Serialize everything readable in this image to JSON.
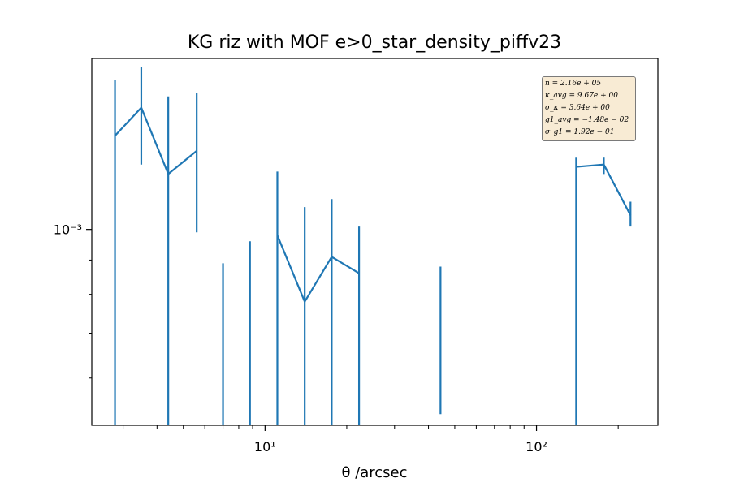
{
  "chart_data": {
    "type": "line",
    "title": "KG riz with MOF e>0_star_density_piffv23",
    "xlabel": "θ /arcsec",
    "ylabel": "",
    "xscale": "log",
    "yscale": "log",
    "xlim": [
      2.3,
      280
    ],
    "ylim": [
      0.00051,
      0.0018
    ],
    "x_tick_labels": [
      "10¹",
      "10²"
    ],
    "x_tick_values": [
      10,
      100
    ],
    "y_tick_labels": [
      "10⁻³"
    ],
    "y_tick_values": [
      0.001
    ],
    "grid": false,
    "line_color": "#1f77b4",
    "series": [
      {
        "x": [
          2.8,
          3.5,
          4.4,
          5.6,
          7.0,
          8.8,
          11.1,
          14.0,
          17.6,
          22.2,
          44.3,
          140,
          177,
          222
        ],
        "y": [
          0.00138,
          0.00152,
          0.00121,
          0.00131,
          null,
          null,
          0.00098,
          0.00078,
          0.00091,
          0.00086,
          null,
          0.00124,
          0.00125,
          0.00105
        ],
        "err_low": [
          0.00051,
          0.00125,
          0.00051,
          0.00099,
          0.00051,
          0.00051,
          0.00051,
          0.00051,
          0.00051,
          0.00051,
          0.00053,
          0.00051,
          0.00121,
          0.00101
        ],
        "err_high": [
          0.00167,
          0.00175,
          0.00158,
          0.0016,
          0.00089,
          0.00096,
          0.00122,
          0.00108,
          0.00111,
          0.00101,
          0.00088,
          0.00128,
          0.00128,
          0.0011
        ]
      }
    ],
    "annotation": {
      "lines": [
        "n = 2.16e + 05",
        "κ_avg = 9.67e + 00",
        "σ_κ = 3.64e + 00",
        "g1_avg = −1.48e − 02",
        "σ_g1 = 1.92e − 01"
      ],
      "placement": "top-right",
      "facecolor": "#f8ebd4"
    }
  }
}
